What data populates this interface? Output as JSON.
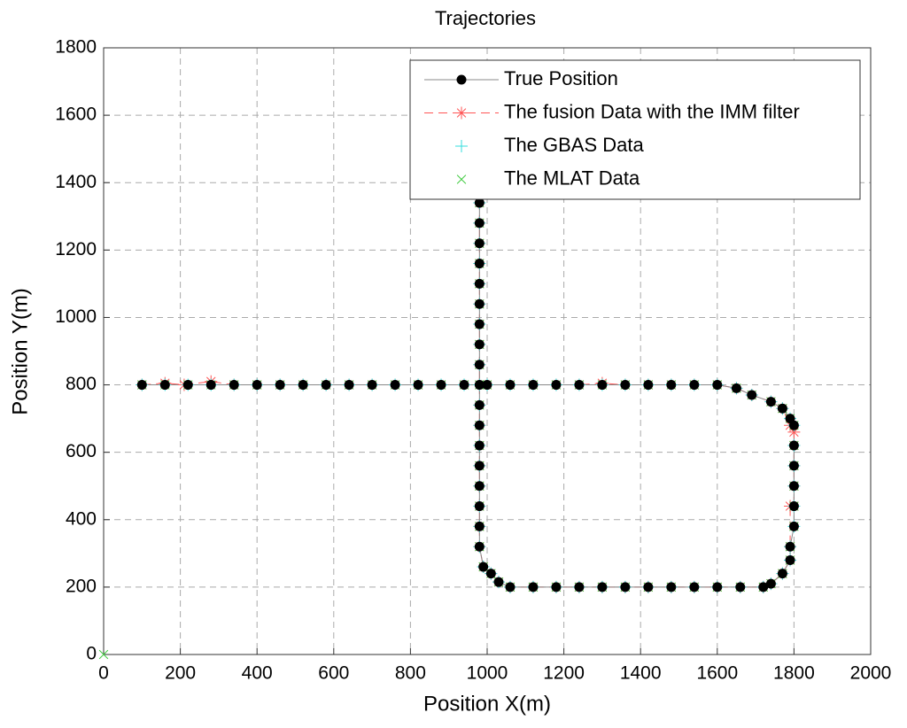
{
  "chart_data": {
    "type": "line",
    "title": "Trajectories",
    "x_label": "Position X(m)",
    "y_label": "Position Y(m)",
    "xlim": [
      0,
      2000
    ],
    "ylim": [
      0,
      1800
    ],
    "xticks": [
      0,
      200,
      400,
      600,
      800,
      1000,
      1200,
      1400,
      1600,
      1800,
      2000
    ],
    "yticks": [
      0,
      200,
      400,
      600,
      800,
      1000,
      1200,
      1400,
      1600,
      1800
    ],
    "grid": true,
    "legend": "upper-right",
    "series": [
      {
        "name": "True Position",
        "color": "#000000",
        "marker": "o",
        "line_style": "solid",
        "x": [
          100,
          160,
          220,
          280,
          340,
          400,
          460,
          520,
          580,
          640,
          700,
          760,
          820,
          880,
          940,
          1000,
          1060,
          1120,
          1180,
          1240,
          1300,
          1360,
          1420,
          1480,
          1540,
          1600,
          1650,
          1690,
          1740,
          1770,
          1790,
          1800,
          1800,
          1800,
          1800,
          1800,
          1800,
          1790,
          1790,
          1770,
          1740,
          1720,
          1660,
          1600,
          1540,
          1480,
          1420,
          1360,
          1300,
          1240,
          1180,
          1120,
          1060,
          1030,
          1010,
          990,
          980,
          980,
          980,
          980,
          980,
          980,
          980,
          980,
          980,
          980,
          980,
          980,
          980,
          980,
          980,
          980,
          980,
          980
        ],
        "y": [
          800,
          800,
          800,
          800,
          800,
          800,
          800,
          800,
          800,
          800,
          800,
          800,
          800,
          800,
          800,
          800,
          800,
          800,
          800,
          800,
          800,
          800,
          800,
          800,
          800,
          800,
          790,
          770,
          750,
          730,
          700,
          680,
          620,
          560,
          500,
          440,
          380,
          320,
          280,
          240,
          210,
          200,
          200,
          200,
          200,
          200,
          200,
          200,
          200,
          200,
          200,
          200,
          200,
          215,
          240,
          260,
          320,
          380,
          440,
          500,
          560,
          620,
          680,
          740,
          800,
          860,
          920,
          980,
          1040,
          1100,
          1160,
          1220,
          1280,
          1340
        ]
      },
      {
        "name": "The fusion Data with the IMM filter",
        "color": "#ff5555",
        "marker": "*",
        "line_style": "dashed",
        "x": [
          100,
          160,
          210,
          280,
          340,
          400,
          460,
          520,
          580,
          640,
          700,
          760,
          820,
          880,
          940,
          1000,
          1060,
          1120,
          1180,
          1240,
          1300,
          1360,
          1420,
          1480,
          1540,
          1600,
          1650,
          1690,
          1740,
          1770,
          1790,
          1800,
          1800,
          1800,
          1800,
          1800,
          1790,
          1790,
          1790,
          1770,
          1740,
          1720,
          1660,
          1600,
          1540,
          1480,
          1420,
          1360,
          1300,
          1240,
          1180,
          1120,
          1060,
          1030,
          1010,
          990,
          980,
          980,
          980,
          980,
          980,
          980,
          980,
          980,
          980,
          980,
          980,
          980,
          980,
          980,
          980,
          980,
          980,
          980
        ],
        "y": [
          800,
          805,
          800,
          810,
          800,
          800,
          800,
          800,
          800,
          800,
          800,
          800,
          800,
          800,
          800,
          800,
          800,
          800,
          800,
          800,
          805,
          800,
          800,
          800,
          800,
          800,
          790,
          770,
          750,
          730,
          680,
          660,
          620,
          560,
          500,
          440,
          440,
          320,
          280,
          240,
          210,
          200,
          200,
          200,
          200,
          200,
          200,
          200,
          200,
          200,
          200,
          200,
          200,
          215,
          240,
          260,
          320,
          380,
          440,
          500,
          560,
          620,
          680,
          740,
          800,
          860,
          920,
          980,
          1040,
          1100,
          1160,
          1220,
          1280,
          1340
        ]
      },
      {
        "name": "The GBAS Data",
        "color": "#33dddd",
        "marker": "+",
        "line_style": "none",
        "x": [
          100,
          160,
          220,
          280,
          340,
          400,
          460,
          520,
          580,
          640,
          700,
          760,
          820,
          880,
          940,
          1000,
          1060,
          1120,
          1180,
          1240,
          1300,
          1360,
          1420,
          1480,
          1540,
          1600,
          1650,
          1690,
          1740,
          1770,
          1790,
          1800,
          1800,
          1800,
          1800,
          1800,
          1800,
          1790,
          1790,
          1770,
          1740,
          1720,
          1660,
          1600,
          1540,
          1480,
          1420,
          1360,
          1300,
          1240,
          1180,
          1120,
          1060,
          1030,
          1010,
          990,
          980,
          980,
          980,
          980,
          980,
          980,
          980,
          980,
          980,
          980,
          980,
          980,
          980,
          980,
          980,
          980,
          980,
          980
        ],
        "y": [
          800,
          800,
          800,
          800,
          800,
          800,
          800,
          800,
          800,
          800,
          800,
          800,
          800,
          800,
          800,
          800,
          800,
          800,
          800,
          800,
          800,
          800,
          800,
          800,
          800,
          800,
          790,
          770,
          750,
          730,
          700,
          680,
          620,
          560,
          500,
          440,
          380,
          320,
          280,
          240,
          210,
          200,
          200,
          200,
          200,
          200,
          200,
          200,
          200,
          200,
          200,
          200,
          200,
          215,
          240,
          260,
          320,
          380,
          440,
          500,
          560,
          620,
          680,
          740,
          800,
          860,
          920,
          980,
          1040,
          1100,
          1160,
          1220,
          1280,
          1340
        ]
      },
      {
        "name": "The MLAT Data",
        "color": "#44cc44",
        "marker": "x",
        "line_style": "none",
        "x": [
          0,
          100,
          160,
          220,
          280,
          340,
          400,
          460,
          520,
          580,
          640,
          700,
          760,
          820,
          880,
          940,
          1000,
          1060,
          1120,
          1180,
          1240,
          1300,
          1360,
          1420,
          1480,
          1540,
          1600,
          1650,
          1690,
          1740,
          1770,
          1790,
          1800,
          1800,
          1800,
          1800,
          1800,
          1800,
          1790,
          1790,
          1770,
          1740,
          1720,
          1660,
          1600,
          1540,
          1480,
          1420,
          1360,
          1300,
          1240,
          1180,
          1120,
          1060,
          1030,
          1010,
          990,
          980,
          980,
          980,
          980,
          980,
          980,
          980,
          980,
          980,
          980,
          980,
          980,
          980,
          980,
          980,
          980,
          980,
          980
        ],
        "y": [
          0,
          800,
          800,
          800,
          800,
          800,
          800,
          800,
          800,
          800,
          800,
          800,
          800,
          800,
          800,
          800,
          800,
          800,
          800,
          800,
          800,
          800,
          800,
          800,
          800,
          800,
          800,
          790,
          770,
          750,
          730,
          700,
          680,
          620,
          560,
          500,
          440,
          380,
          320,
          280,
          240,
          210,
          200,
          200,
          200,
          200,
          200,
          200,
          200,
          200,
          200,
          200,
          200,
          200,
          215,
          240,
          260,
          320,
          380,
          440,
          500,
          560,
          620,
          680,
          740,
          800,
          860,
          920,
          980,
          1040,
          1100,
          1160,
          1220,
          1280,
          1340
        ]
      }
    ]
  }
}
